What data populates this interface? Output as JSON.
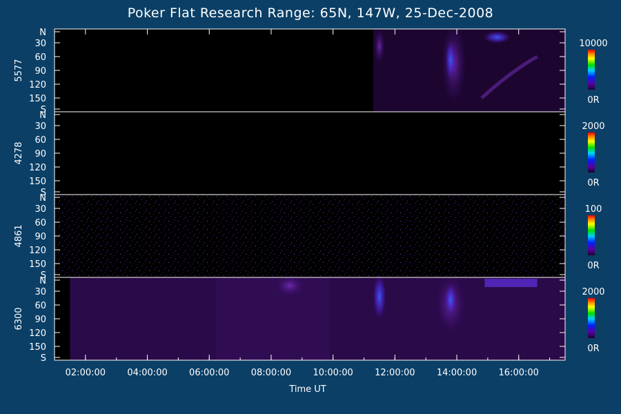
{
  "chart_data": {
    "type": "heatmap",
    "title": "Poker Flat Research Range: 65N, 147W, 25-Dec-2008",
    "xlabel": "Time UT",
    "x_ticks": [
      "02:00:00",
      "04:00:00",
      "06:00:00",
      "08:00:00",
      "10:00:00",
      "12:00:00",
      "14:00:00",
      "16:00:00"
    ],
    "y_ticks": [
      "N",
      "30",
      "60",
      "90",
      "120",
      "150",
      "S"
    ],
    "panels": [
      {
        "name": "5577",
        "colorbar_max": "10000",
        "colorbar_min": "0R"
      },
      {
        "name": "4278",
        "colorbar_max": "2000",
        "colorbar_min": "0R"
      },
      {
        "name": "4861",
        "colorbar_max": "100",
        "colorbar_min": "0R"
      },
      {
        "name": "6300",
        "colorbar_max": "2000",
        "colorbar_min": "0R"
      }
    ],
    "colors": {
      "background": "#0b3f66",
      "plot": "#000000",
      "emission": "#6a1fa0",
      "bright": "#2a4cff"
    }
  }
}
